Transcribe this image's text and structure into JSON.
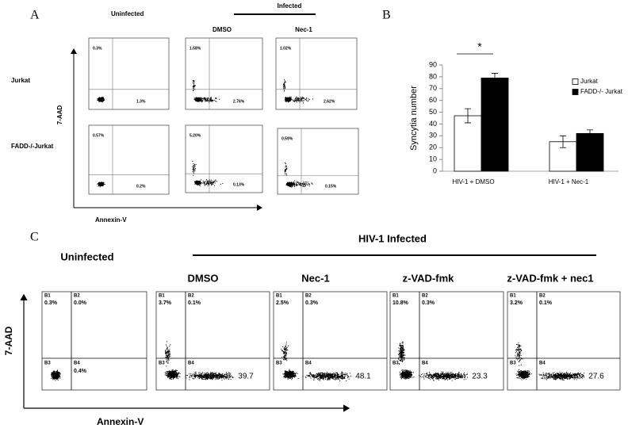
{
  "panel_a": {
    "label": "A",
    "header_uninfected": "Uninfected",
    "header_infected": "Infected",
    "columns": [
      "DMSO",
      "Nec-1"
    ],
    "rows": [
      "Jurkat",
      "FADD-/-Jurkat"
    ],
    "y_axis": "7-AAD",
    "x_axis": "Annexin-V",
    "plots": [
      [
        {
          "upper": "0.3%",
          "lower": "1.3%"
        },
        {
          "upper": "1.58%",
          "lower": "2.76%"
        },
        {
          "upper": "1.02%",
          "lower": "2.62%"
        }
      ],
      [
        {
          "upper": "0.57%",
          "lower": "0.2%"
        },
        {
          "upper": "5.20%",
          "lower": "0.13%"
        },
        {
          "upper": "0.59%",
          "lower": "0.15%"
        }
      ]
    ]
  },
  "chart_data": {
    "type": "bar",
    "label": "B",
    "ylabel": "Syncytia number",
    "categories": [
      "HIV-1 + DMSO",
      "HIV-1 + Nec-1"
    ],
    "series": [
      {
        "name": "Jurkat",
        "color": "#ffffff",
        "values": [
          47,
          25
        ],
        "errors": [
          6,
          5
        ]
      },
      {
        "name": "FADD-/- Jurkat",
        "color": "#000000",
        "values": [
          79,
          32
        ],
        "errors": [
          4,
          3
        ]
      }
    ],
    "ylim": [
      0,
      90
    ],
    "yticks": [
      0,
      10,
      20,
      30,
      40,
      50,
      60,
      70,
      80,
      90
    ],
    "annotation": "*",
    "legend": "right"
  },
  "panel_c": {
    "label": "C",
    "header": "HIV-1 Infected",
    "uninfected": "Uninfected",
    "columns": [
      "DMSO",
      "Nec-1",
      "z-VAD-fmk",
      "z-VAD-fmk + nec1"
    ],
    "y_axis": "7-AAD",
    "x_axis": "Annexin-V",
    "quadrants": [
      "B1",
      "B2",
      "B3",
      "B4"
    ],
    "plots": [
      {
        "b1": "0.3%",
        "b2": "0.0%",
        "b4": "0.4%"
      },
      {
        "b1": "3.7%",
        "b2": "0.1%",
        "b4": "39.7"
      },
      {
        "b1": "2.5%",
        "b2": "0.3%",
        "b4": "48.1"
      },
      {
        "b1": "10.8%",
        "b2": "0.3%",
        "b4": "23.3"
      },
      {
        "b1": "3.2%",
        "b2": "0.1%",
        "b4": "27.6"
      }
    ]
  }
}
